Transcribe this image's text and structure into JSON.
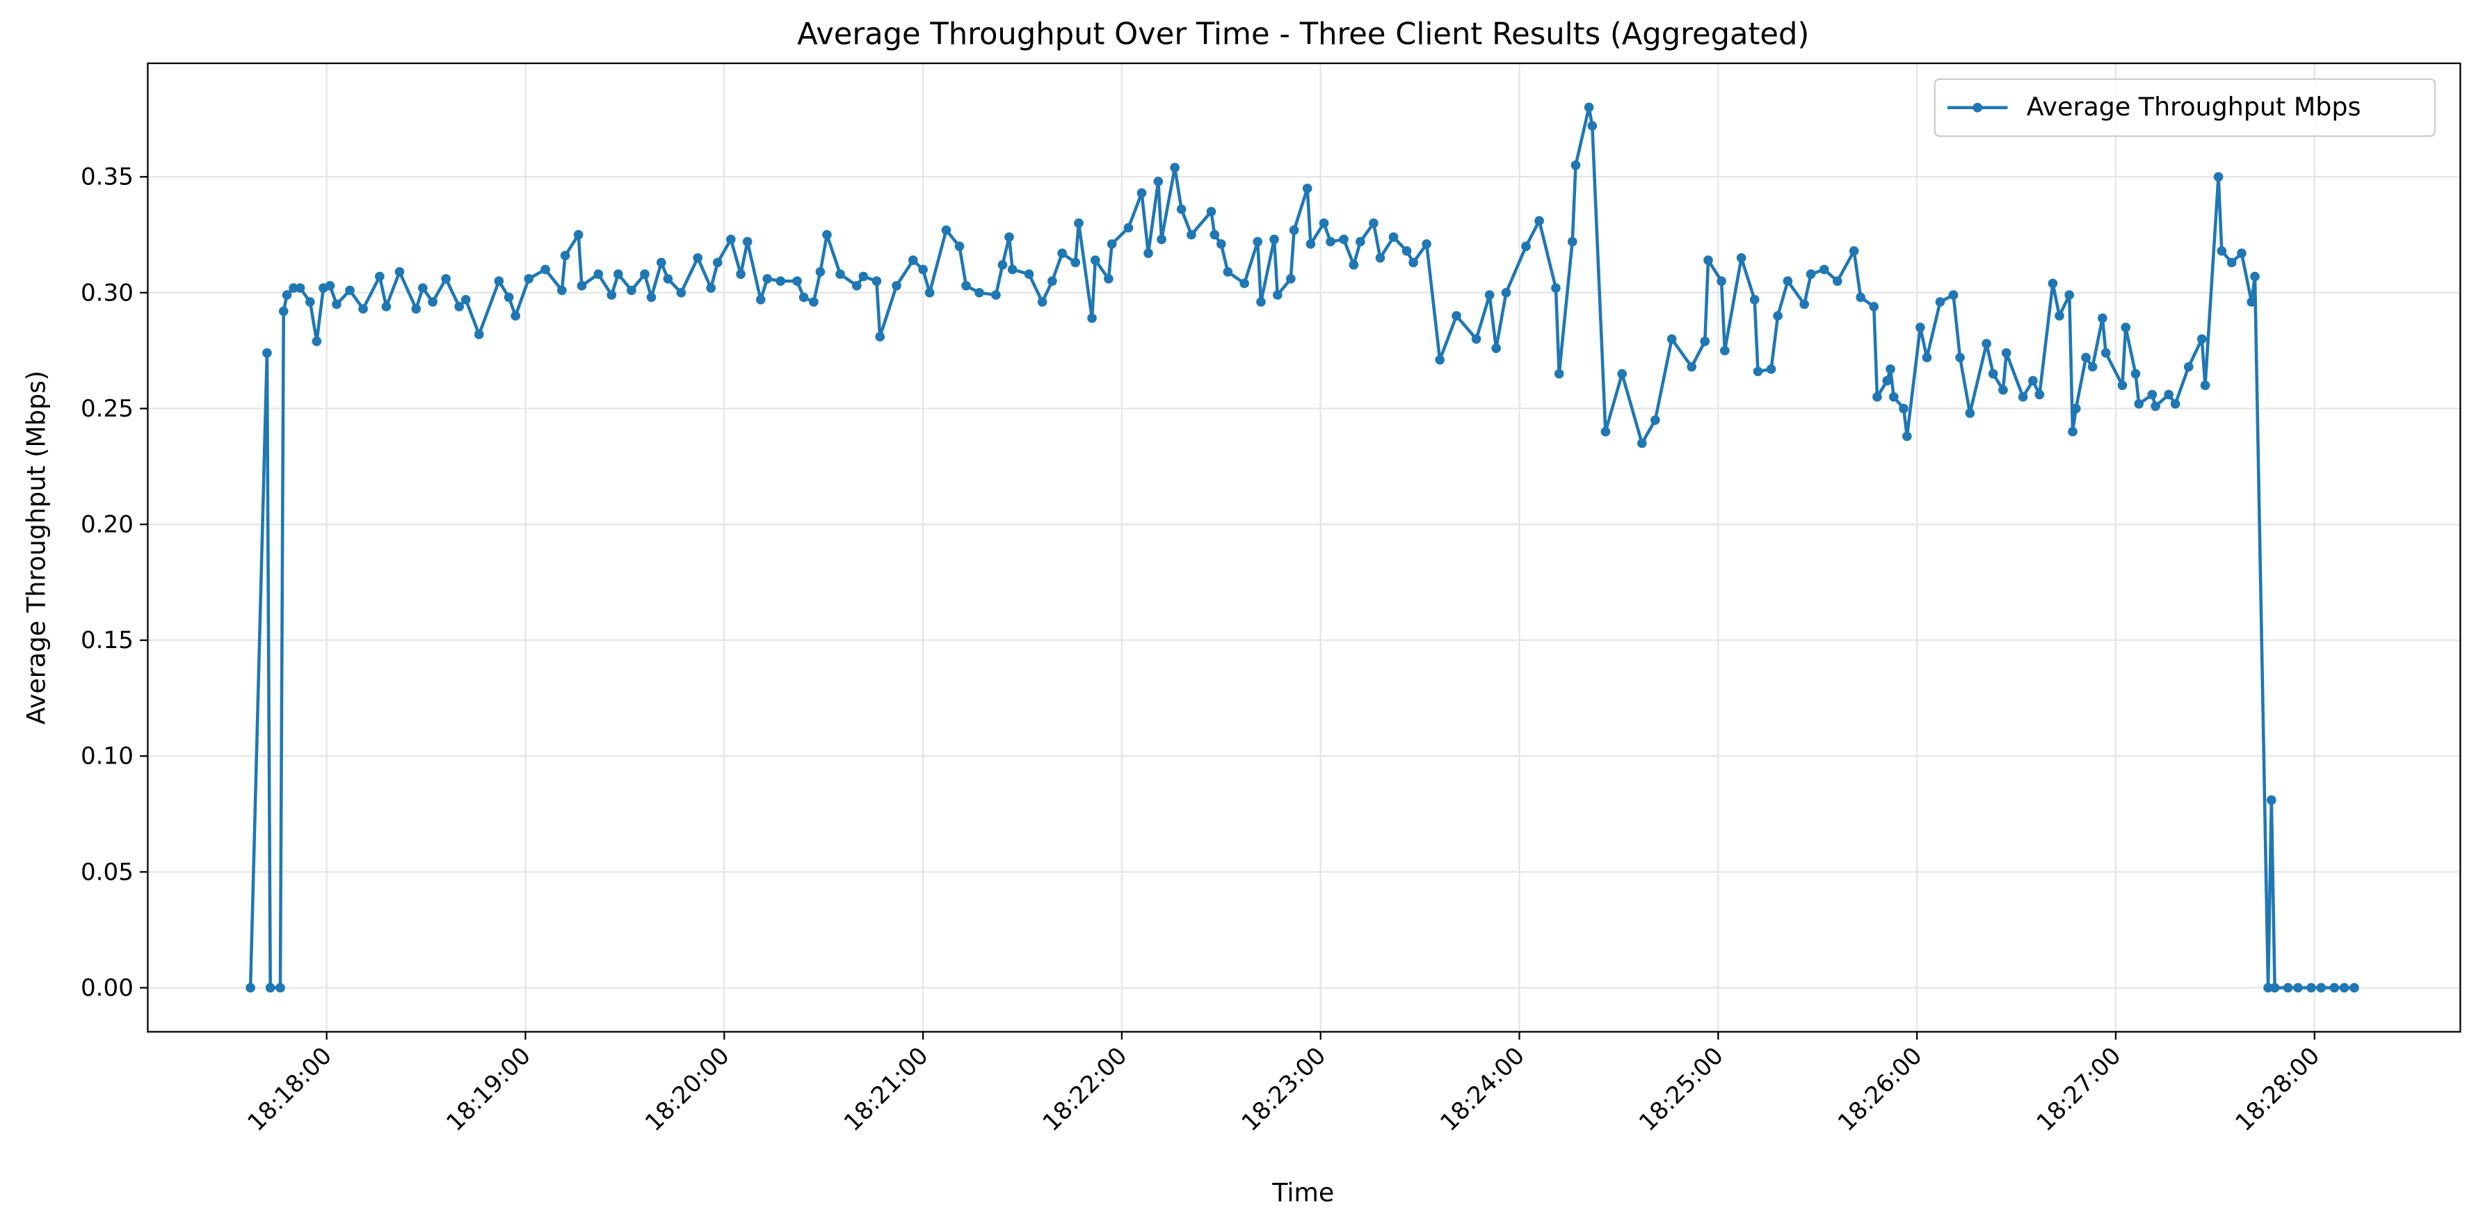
{
  "chart_data": {
    "type": "line",
    "title": "Average Throughput Over Time - Three Client Results (Aggregated)",
    "xlabel": "Time",
    "ylabel": "Average Throughput (Mbps)",
    "x": [
      "18:17:37",
      "18:17:42",
      "18:17:43",
      "18:17:46",
      "18:17:47",
      "18:17:48",
      "18:17:50",
      "18:17:52",
      "18:17:55",
      "18:17:57",
      "18:17:59",
      "18:18:01",
      "18:18:03",
      "18:18:07",
      "18:18:11",
      "18:18:16",
      "18:18:18",
      "18:18:22",
      "18:18:27",
      "18:18:29",
      "18:18:32",
      "18:18:36",
      "18:18:40",
      "18:18:42",
      "18:18:46",
      "18:18:52",
      "18:18:55",
      "18:18:57",
      "18:19:01",
      "18:19:06",
      "18:19:11",
      "18:19:12",
      "18:19:16",
      "18:19:17",
      "18:19:22",
      "18:19:26",
      "18:19:28",
      "18:19:32",
      "18:19:36",
      "18:19:38",
      "18:19:41",
      "18:19:43",
      "18:19:47",
      "18:19:52",
      "18:19:56",
      "18:19:58",
      "18:20:02",
      "18:20:05",
      "18:20:07",
      "18:20:11",
      "18:20:13",
      "18:20:17",
      "18:20:22",
      "18:20:24",
      "18:20:27",
      "18:20:29",
      "18:20:31",
      "18:20:35",
      "18:20:40",
      "18:20:42",
      "18:20:46",
      "18:20:47",
      "18:20:52",
      "18:20:57",
      "18:21:00",
      "18:21:02",
      "18:21:07",
      "18:21:11",
      "18:21:13",
      "18:21:17",
      "18:21:22",
      "18:21:24",
      "18:21:26",
      "18:21:27",
      "18:21:32",
      "18:21:36",
      "18:21:39",
      "18:21:42",
      "18:21:46",
      "18:21:47",
      "18:21:51",
      "18:21:52",
      "18:21:56",
      "18:21:57",
      "18:22:02",
      "18:22:06",
      "18:22:08",
      "18:22:11",
      "18:22:12",
      "18:22:16",
      "18:22:18",
      "18:22:21",
      "18:22:27",
      "18:22:28",
      "18:22:30",
      "18:22:32",
      "18:22:37",
      "18:22:41",
      "18:22:42",
      "18:22:46",
      "18:22:47",
      "18:22:51",
      "18:22:52",
      "18:22:56",
      "18:22:57",
      "18:23:01",
      "18:23:03",
      "18:23:07",
      "18:23:10",
      "18:23:12",
      "18:23:16",
      "18:23:18",
      "18:23:22",
      "18:23:26",
      "18:23:28",
      "18:23:32",
      "18:23:36",
      "18:23:41",
      "18:23:47",
      "18:23:51",
      "18:23:53",
      "18:23:56",
      "18:24:02",
      "18:24:06",
      "18:24:11",
      "18:24:12",
      "18:24:16",
      "18:24:17",
      "18:24:21",
      "18:24:22",
      "18:24:26",
      "18:24:31",
      "18:24:37",
      "18:24:41",
      "18:24:46",
      "18:24:52",
      "18:24:56",
      "18:24:57",
      "18:25:01",
      "18:25:02",
      "18:25:07",
      "18:25:11",
      "18:25:12",
      "18:25:16",
      "18:25:18",
      "18:25:21",
      "18:25:26",
      "18:25:28",
      "18:25:32",
      "18:25:36",
      "18:25:41",
      "18:25:43",
      "18:25:47",
      "18:25:48",
      "18:25:51",
      "18:25:52",
      "18:25:53",
      "18:25:56",
      "18:25:57",
      "18:26:01",
      "18:26:03",
      "18:26:07",
      "18:26:11",
      "18:26:13",
      "18:26:16",
      "18:26:21",
      "18:26:23",
      "18:26:26",
      "18:26:27",
      "18:26:32",
      "18:26:35",
      "18:26:37",
      "18:26:41",
      "18:26:43",
      "18:26:46",
      "18:26:47",
      "18:26:48",
      "18:26:51",
      "18:26:53",
      "18:26:56",
      "18:26:57",
      "18:27:02",
      "18:27:03",
      "18:27:06",
      "18:27:07",
      "18:27:11",
      "18:27:12",
      "18:27:16",
      "18:27:18",
      "18:27:22",
      "18:27:26",
      "18:27:27",
      "18:27:31",
      "18:27:32",
      "18:27:35",
      "18:27:38",
      "18:27:41",
      "18:27:42",
      "18:27:46",
      "18:27:47",
      "18:27:48",
      "18:27:52",
      "18:27:55",
      "18:27:59",
      "18:28:02",
      "18:28:06",
      "18:28:09",
      "18:28:12"
    ],
    "series": [
      {
        "name": "Average Throughput Mbps",
        "color": "#1f77b4",
        "values": [
          0,
          0.274,
          0,
          0,
          0.292,
          0.299,
          0.302,
          0.302,
          0.296,
          0.279,
          0.302,
          0.303,
          0.295,
          0.301,
          0.293,
          0.307,
          0.294,
          0.309,
          0.293,
          0.302,
          0.296,
          0.306,
          0.294,
          0.297,
          0.282,
          0.305,
          0.298,
          0.29,
          0.306,
          0.31,
          0.301,
          0.316,
          0.325,
          0.303,
          0.308,
          0.299,
          0.308,
          0.301,
          0.308,
          0.298,
          0.313,
          0.306,
          0.3,
          0.315,
          0.302,
          0.313,
          0.323,
          0.308,
          0.322,
          0.297,
          0.306,
          0.305,
          0.305,
          0.298,
          0.296,
          0.309,
          0.325,
          0.308,
          0.303,
          0.307,
          0.305,
          0.281,
          0.303,
          0.314,
          0.31,
          0.3,
          0.327,
          0.32,
          0.303,
          0.3,
          0.299,
          0.312,
          0.324,
          0.31,
          0.308,
          0.296,
          0.305,
          0.317,
          0.313,
          0.33,
          0.289,
          0.314,
          0.306,
          0.321,
          0.328,
          0.343,
          0.317,
          0.348,
          0.323,
          0.354,
          0.336,
          0.325,
          0.335,
          0.325,
          0.321,
          0.309,
          0.304,
          0.322,
          0.296,
          0.323,
          0.299,
          0.306,
          0.327,
          0.345,
          0.321,
          0.33,
          0.322,
          0.323,
          0.312,
          0.322,
          0.33,
          0.315,
          0.324,
          0.318,
          0.313,
          0.321,
          0.271,
          0.29,
          0.28,
          0.299,
          0.276,
          0.3,
          0.32,
          0.331,
          0.302,
          0.265,
          0.322,
          0.355,
          0.38,
          0.372,
          0.24,
          0.265,
          0.235,
          0.245,
          0.28,
          0.268,
          0.279,
          0.314,
          0.305,
          0.275,
          0.315,
          0.297,
          0.266,
          0.267,
          0.29,
          0.305,
          0.295,
          0.308,
          0.31,
          0.305,
          0.318,
          0.298,
          0.294,
          0.255,
          0.262,
          0.267,
          0.255,
          0.25,
          0.238,
          0.285,
          0.272,
          0.296,
          0.299,
          0.272,
          0.248,
          0.278,
          0.265,
          0.258,
          0.274,
          0.255,
          0.262,
          0.256,
          0.304,
          0.29,
          0.299,
          0.24,
          0.25,
          0.272,
          0.268,
          0.289,
          0.274,
          0.26,
          0.285,
          0.265,
          0.252,
          0.256,
          0.251,
          0.256,
          0.252,
          0.268,
          0.28,
          0.26,
          0.35,
          0.318,
          0.313,
          0.317,
          0.296,
          0.307,
          0,
          0.081,
          0,
          0,
          0,
          0,
          0,
          0,
          0,
          0
        ]
      }
    ],
    "xlim": [
      "18:17:06",
      "18:28:44"
    ],
    "xticks": [
      "18:18:00",
      "18:19:00",
      "18:20:00",
      "18:21:00",
      "18:22:00",
      "18:23:00",
      "18:24:00",
      "18:25:00",
      "18:26:00",
      "18:27:00",
      "18:28:00"
    ],
    "ylim": [
      -0.019,
      0.399
    ],
    "yticks": [
      {
        "value": 0,
        "label": "0.00"
      },
      {
        "value": 0.05,
        "label": "0.05"
      },
      {
        "value": 0.1,
        "label": "0.10"
      },
      {
        "value": 0.15,
        "label": "0.15"
      },
      {
        "value": 0.2,
        "label": "0.20"
      },
      {
        "value": 0.25,
        "label": "0.25"
      },
      {
        "value": 0.3,
        "label": "0.30"
      },
      {
        "value": 0.35,
        "label": "0.35"
      }
    ],
    "grid": true,
    "legend": "upper right",
    "marker": true
  }
}
